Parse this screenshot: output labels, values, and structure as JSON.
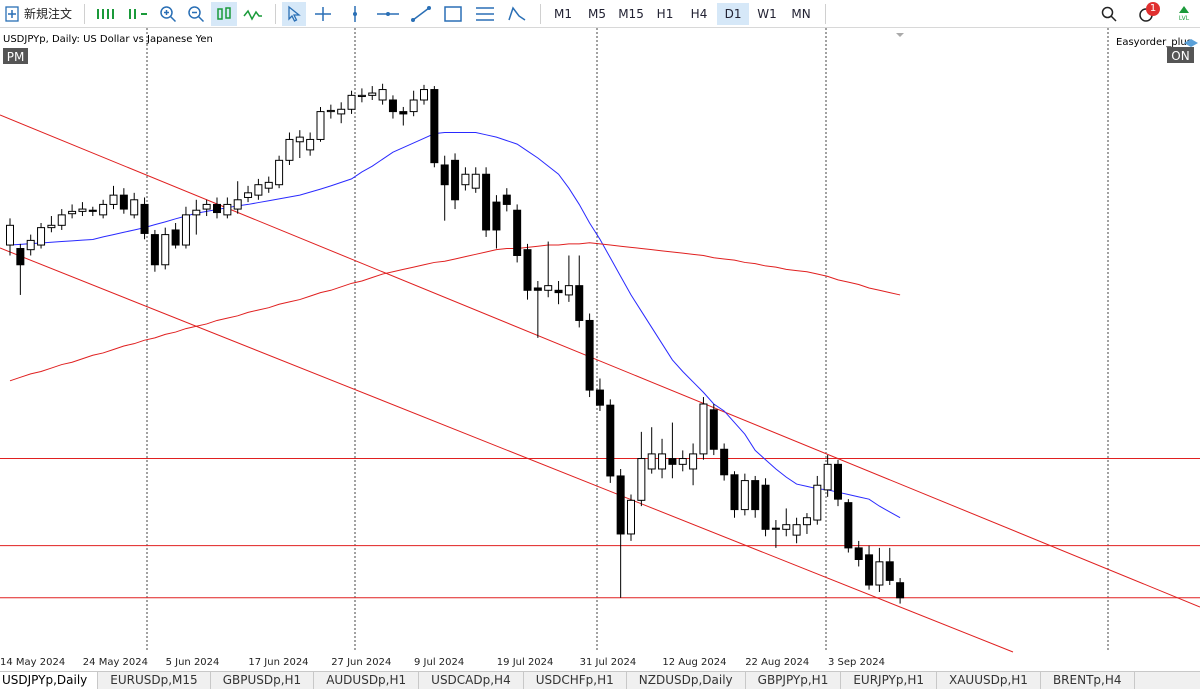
{
  "toolbar": {
    "new_order": "新規注文",
    "timeframes": [
      "M1",
      "M5",
      "M15",
      "H1",
      "H4",
      "D1",
      "W1",
      "MN"
    ],
    "active_timeframe": "D1",
    "notifications": 1,
    "lvl": "LVL"
  },
  "chart": {
    "symbol_label": "USDJPYp, Daily:  US Dollar vs Japanese Yen",
    "pm": "PM",
    "ea_name": "Easyorder_plus",
    "ea_status": "ON",
    "x_labels": [
      "14 May 2024",
      "24 May 2024",
      "5 Jun 2024",
      "17 Jun 2024",
      "27 Jun 2024",
      "9 Jul 2024",
      "19 Jul 2024",
      "31 Jul 2024",
      "12 Aug 2024",
      "22 Aug 2024",
      "3 Sep 2024"
    ],
    "ylim": [
      137.6,
      164.23
    ],
    "ohlc": [
      [
        155.05,
        156.2,
        154.6,
        155.9
      ],
      [
        154.9,
        155.1,
        152.9,
        154.2
      ],
      [
        154.85,
        155.5,
        154.6,
        155.25
      ],
      [
        155.05,
        156.0,
        154.9,
        155.8
      ],
      [
        155.8,
        156.3,
        155.6,
        155.9
      ],
      [
        155.9,
        156.6,
        155.7,
        156.35
      ],
      [
        156.4,
        156.8,
        156.2,
        156.5
      ],
      [
        156.5,
        156.9,
        156.3,
        156.6
      ],
      [
        156.55,
        156.7,
        156.3,
        156.5
      ],
      [
        156.35,
        157.0,
        156.2,
        156.8
      ],
      [
        156.8,
        157.6,
        156.6,
        157.2
      ],
      [
        157.2,
        157.5,
        156.4,
        156.6
      ],
      [
        156.35,
        157.3,
        156.2,
        157.0
      ],
      [
        156.8,
        157.1,
        155.3,
        155.55
      ],
      [
        155.5,
        155.7,
        153.9,
        154.2
      ],
      [
        154.2,
        155.8,
        154.0,
        155.5
      ],
      [
        155.7,
        156.0,
        154.9,
        155.05
      ],
      [
        155.05,
        156.7,
        154.9,
        156.35
      ],
      [
        156.35,
        157.0,
        155.5,
        156.55
      ],
      [
        156.6,
        157.0,
        156.3,
        156.8
      ],
      [
        156.8,
        157.1,
        156.2,
        156.45
      ],
      [
        156.35,
        157.1,
        156.2,
        156.8
      ],
      [
        156.6,
        157.8,
        156.4,
        157.0
      ],
      [
        157.1,
        157.6,
        156.9,
        157.3
      ],
      [
        157.2,
        157.9,
        157.0,
        157.65
      ],
      [
        157.5,
        158.0,
        157.3,
        157.75
      ],
      [
        157.65,
        158.9,
        157.5,
        158.7
      ],
      [
        158.7,
        159.9,
        158.5,
        159.6
      ],
      [
        159.5,
        160.0,
        158.8,
        159.7
      ],
      [
        159.15,
        159.9,
        158.9,
        159.6
      ],
      [
        159.6,
        161.0,
        159.5,
        160.8
      ],
      [
        160.8,
        161.1,
        160.5,
        160.85
      ],
      [
        160.7,
        161.2,
        160.3,
        160.9
      ],
      [
        160.9,
        161.7,
        160.7,
        161.5
      ],
      [
        161.45,
        161.8,
        161.2,
        161.5
      ],
      [
        161.5,
        161.9,
        161.3,
        161.6
      ],
      [
        161.3,
        162.0,
        161.1,
        161.75
      ],
      [
        161.3,
        161.5,
        160.5,
        160.8
      ],
      [
        160.8,
        161.0,
        160.2,
        160.7
      ],
      [
        160.8,
        161.7,
        160.6,
        161.3
      ],
      [
        161.3,
        161.95,
        161.1,
        161.75
      ],
      [
        161.75,
        161.9,
        158.4,
        158.6
      ],
      [
        158.5,
        158.9,
        156.1,
        157.65
      ],
      [
        158.7,
        159.0,
        156.6,
        157.0
      ],
      [
        157.65,
        158.4,
        157.4,
        158.1
      ],
      [
        157.5,
        158.4,
        157.3,
        158.1
      ],
      [
        158.1,
        158.4,
        155.4,
        155.7
      ],
      [
        156.9,
        157.2,
        154.9,
        155.7
      ],
      [
        157.2,
        157.5,
        156.5,
        156.8
      ],
      [
        156.55,
        156.8,
        154.3,
        154.6
      ],
      [
        154.85,
        155.1,
        152.7,
        153.1
      ],
      [
        153.2,
        153.5,
        151.05,
        153.1
      ],
      [
        153.1,
        155.2,
        152.8,
        153.3
      ],
      [
        153.1,
        153.5,
        152.5,
        153.0
      ],
      [
        152.9,
        154.6,
        152.6,
        153.3
      ],
      [
        153.3,
        154.6,
        151.5,
        151.8
      ],
      [
        151.8,
        152.1,
        148.5,
        148.8
      ],
      [
        148.8,
        149.3,
        147.9,
        148.15
      ],
      [
        148.15,
        148.4,
        144.8,
        145.1
      ],
      [
        145.1,
        145.4,
        139.85,
        142.6
      ],
      [
        142.6,
        144.3,
        142.3,
        144.05
      ],
      [
        144.05,
        147.0,
        143.8,
        145.85
      ],
      [
        145.4,
        147.2,
        145.2,
        146.05
      ],
      [
        145.4,
        146.7,
        145.0,
        146.05
      ],
      [
        145.85,
        147.4,
        145.0,
        145.6
      ],
      [
        145.6,
        146.2,
        145.3,
        145.85
      ],
      [
        145.4,
        146.5,
        144.7,
        146.05
      ],
      [
        146.05,
        148.5,
        145.8,
        148.2
      ],
      [
        147.95,
        148.2,
        146.0,
        146.25
      ],
      [
        146.25,
        146.5,
        144.9,
        145.15
      ],
      [
        145.15,
        145.3,
        143.3,
        143.65
      ],
      [
        143.65,
        145.2,
        143.4,
        144.9
      ],
      [
        144.9,
        145.1,
        143.3,
        143.65
      ],
      [
        144.7,
        145.0,
        142.5,
        142.8
      ],
      [
        142.85,
        143.2,
        142.0,
        142.8
      ],
      [
        142.8,
        143.7,
        142.5,
        143.0
      ],
      [
        142.55,
        143.3,
        142.2,
        143.0
      ],
      [
        143.0,
        143.5,
        142.6,
        143.3
      ],
      [
        143.2,
        145.1,
        143.0,
        144.7
      ],
      [
        144.5,
        146.0,
        144.2,
        145.6
      ],
      [
        145.6,
        145.8,
        143.8,
        144.1
      ],
      [
        143.95,
        144.1,
        141.8,
        142.0
      ],
      [
        142.0,
        142.3,
        141.2,
        141.5
      ],
      [
        141.7,
        142.1,
        140.2,
        140.4
      ],
      [
        140.4,
        142.0,
        140.1,
        141.4
      ],
      [
        141.4,
        142.0,
        140.4,
        140.6
      ],
      [
        140.5,
        140.7,
        139.6,
        139.85
      ]
    ],
    "ma_fast": {
      "color": "#2a2aff",
      "values": [
        155.05,
        155.08,
        155.11,
        155.14,
        155.17,
        155.2,
        155.23,
        155.26,
        155.29,
        155.4,
        155.5,
        155.6,
        155.7,
        155.8,
        155.93,
        156.05,
        156.18,
        156.3,
        156.42,
        156.5,
        156.58,
        156.66,
        156.74,
        156.8,
        156.88,
        156.96,
        157.04,
        157.12,
        157.2,
        157.33,
        157.46,
        157.6,
        157.75,
        157.9,
        158.2,
        158.45,
        158.75,
        159.05,
        159.25,
        159.45,
        159.65,
        159.85,
        159.9,
        159.9,
        159.9,
        159.9,
        159.8,
        159.7,
        159.55,
        159.4,
        159.1,
        158.8,
        158.45,
        158.1,
        157.5,
        156.8,
        156.0,
        155.3,
        154.5,
        153.7,
        152.9,
        152.2,
        151.5,
        150.8,
        150.1,
        149.6,
        149.15,
        148.7,
        148.2,
        147.9,
        147.4,
        146.9,
        146.2,
        145.8,
        145.4,
        145.05,
        144.75,
        144.65,
        144.55,
        144.5,
        144.4,
        144.3,
        144.2,
        144.1,
        143.8,
        143.55,
        143.3
      ]
    },
    "ma_slow": {
      "color": "#e02020",
      "values": [
        149.2,
        149.35,
        149.5,
        149.6,
        149.75,
        149.9,
        150.0,
        150.15,
        150.3,
        150.4,
        150.55,
        150.7,
        150.8,
        150.95,
        151.05,
        151.2,
        151.3,
        151.45,
        151.55,
        151.65,
        151.8,
        151.9,
        152.0,
        152.15,
        152.25,
        152.35,
        152.5,
        152.6,
        152.7,
        152.85,
        153.0,
        153.1,
        153.25,
        153.4,
        153.5,
        153.65,
        153.8,
        153.9,
        154.0,
        154.1,
        154.2,
        154.3,
        154.35,
        154.45,
        154.55,
        154.65,
        154.75,
        154.85,
        154.9,
        154.9,
        154.95,
        155.0,
        155.05,
        155.05,
        155.1,
        155.1,
        155.15,
        155.1,
        155.05,
        155.0,
        154.95,
        154.9,
        154.85,
        154.8,
        154.75,
        154.7,
        154.65,
        154.6,
        154.5,
        154.45,
        154.4,
        154.3,
        154.25,
        154.15,
        154.1,
        154.0,
        153.95,
        153.9,
        153.8,
        153.7,
        153.55,
        153.45,
        153.35,
        153.2,
        153.1,
        153.0,
        152.9
      ]
    },
    "levels": {
      "color": "#e02020",
      "values": [
        145.85,
        142.1,
        139.85
      ]
    }
  },
  "tabs": {
    "items": [
      "USDJPYp,Daily",
      "EURUSDp,M15",
      "GBPUSDp,H1",
      "AUDUSDp,H1",
      "USDCADp,H4",
      "USDCHFp,H1",
      "NZDUSDp,Daily",
      "GBPJPYp,H1",
      "EURJPYp,H1",
      "XAUUSDp,H1",
      "BRENTp,H4"
    ],
    "active": "USDJPYp,Daily"
  }
}
